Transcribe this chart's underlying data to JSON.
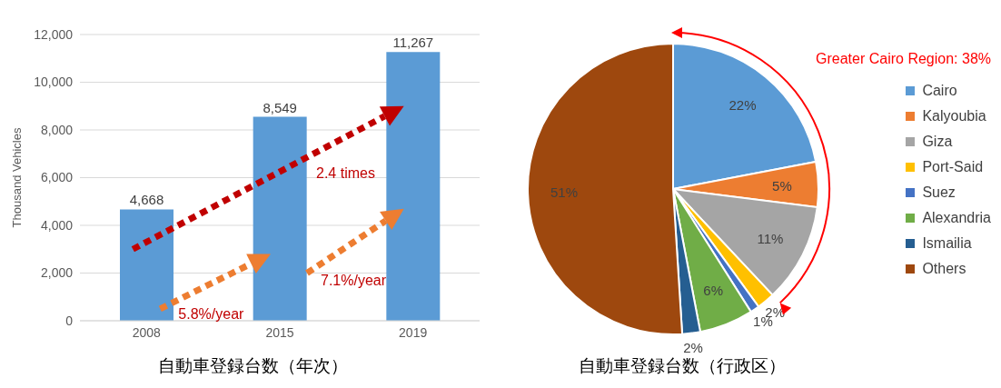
{
  "chart_data": [
    {
      "type": "bar",
      "title": "自動車登録台数（年次）",
      "ylabel": "Thousand Vehicles",
      "categories": [
        "2008",
        "2015",
        "2019"
      ],
      "values": [
        4668,
        8549,
        11267
      ],
      "color": "#5b9bd5",
      "data_labels": true,
      "value_labels": [
        "4,668",
        "8,549",
        "11,267"
      ],
      "ylim": [
        0,
        12000
      ],
      "yticks": [
        0,
        {
          "value": 2000,
          "label": "2,000"
        },
        {
          "value": 4000,
          "label": "4,000"
        },
        {
          "value": 6000,
          "label": "6,000"
        },
        {
          "value": 8000,
          "label": "8,000"
        },
        {
          "value": 10000,
          "label": "10,000"
        },
        {
          "value": 12000,
          "label": "12,000"
        }
      ],
      "grid": "y",
      "annotations": [
        "2.4 times",
        "5.8%/year",
        "7.1%/year"
      ]
    },
    {
      "type": "pie",
      "title": "自動車登録台数（行政区）",
      "categories": [
        "Cairo",
        "Kalyoubia",
        "Giza",
        "Port-Said",
        "Suez",
        "Alexandria",
        "Ismailia",
        "Others"
      ],
      "values": [
        22,
        5,
        11,
        2,
        1,
        6,
        2,
        51
      ],
      "colors": [
        "#5b9bd5",
        "#ed7d31",
        "#a5a5a5",
        "#ffc000",
        "#4472c4",
        "#70ad47",
        "#255e91",
        "#9e480e"
      ],
      "value_labels": [
        "22%",
        "5%",
        "11%",
        "2%",
        "1%",
        "6%",
        "2%",
        "51%"
      ],
      "legend": "right",
      "annotations": [
        "Greater Cairo Region: 38%"
      ]
    }
  ]
}
